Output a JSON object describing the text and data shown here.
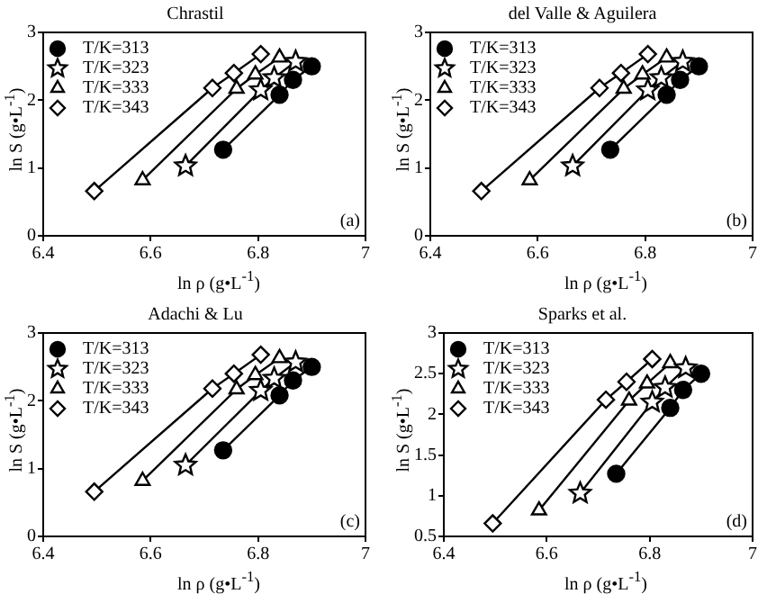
{
  "chart_data": [
    {
      "type": "line",
      "title": "Chrastil",
      "xlabel": "ln ρ (g•L$^{-1}$)",
      "ylabel": "ln S (g•L$^{-1}$)",
      "xlim": [
        6.4,
        7
      ],
      "xticks": [
        6.4,
        6.6,
        6.8,
        7
      ],
      "ylim": [
        0,
        3
      ],
      "yticks": [
        0,
        1,
        2,
        3
      ],
      "legend": "top left",
      "grid": false,
      "annotations": [
        "(a)"
      ],
      "series": [
        {
          "name": "T/K=313",
          "color": "#000000",
          "marker": "circle",
          "x": [
            6.735,
            6.84,
            6.865,
            6.9
          ],
          "values": [
            1.27,
            2.08,
            2.3,
            2.5
          ]
        },
        {
          "name": "T/K=323",
          "color": "#000000",
          "marker": "star",
          "x": [
            6.665,
            6.805,
            6.83,
            6.87
          ],
          "values": [
            1.03,
            2.15,
            2.33,
            2.57
          ]
        },
        {
          "name": "T/K=333",
          "color": "#000000",
          "marker": "triangle",
          "x": [
            6.585,
            6.76,
            6.795,
            6.84
          ],
          "values": [
            0.82,
            2.17,
            2.38,
            2.63
          ]
        },
        {
          "name": "T/K=343",
          "color": "#000000",
          "marker": "diamond",
          "x": [
            6.495,
            6.715,
            6.755,
            6.805
          ],
          "values": [
            0.66,
            2.18,
            2.4,
            2.68
          ]
        }
      ]
    },
    {
      "type": "line",
      "title": "del Valle & Aguilera",
      "xlabel": "ln ρ (g•L$^{-1}$)",
      "ylabel": "ln S (g•L$^{-1}$)",
      "xlim": [
        6.4,
        7
      ],
      "xticks": [
        6.4,
        6.6,
        6.8,
        7
      ],
      "ylim": [
        0,
        3
      ],
      "yticks": [
        0,
        1,
        2,
        3
      ],
      "legend": "top left",
      "grid": false,
      "annotations": [
        "(b)"
      ],
      "series": [
        {
          "name": "T/K=313",
          "color": "#000000",
          "marker": "circle",
          "x": [
            6.735,
            6.84,
            6.865,
            6.9
          ],
          "values": [
            1.27,
            2.08,
            2.3,
            2.5
          ]
        },
        {
          "name": "T/K=323",
          "color": "#000000",
          "marker": "star",
          "x": [
            6.665,
            6.805,
            6.83,
            6.87
          ],
          "values": [
            1.03,
            2.15,
            2.33,
            2.57
          ]
        },
        {
          "name": "T/K=333",
          "color": "#000000",
          "marker": "triangle",
          "x": [
            6.585,
            6.76,
            6.795,
            6.84
          ],
          "values": [
            0.82,
            2.17,
            2.38,
            2.63
          ]
        },
        {
          "name": "T/K=343",
          "color": "#000000",
          "marker": "diamond",
          "x": [
            6.495,
            6.715,
            6.755,
            6.805
          ],
          "values": [
            0.66,
            2.18,
            2.4,
            2.68
          ]
        }
      ]
    },
    {
      "type": "line",
      "title": "Adachi & Lu",
      "xlabel": "ln ρ (g•L$^{-1}$)",
      "ylabel": "ln S (g•L$^{-1}$)",
      "xlim": [
        6.4,
        7
      ],
      "xticks": [
        6.4,
        6.6,
        6.8,
        7
      ],
      "ylim": [
        0,
        3
      ],
      "yticks": [
        0,
        1,
        2,
        3
      ],
      "legend": "top left",
      "grid": false,
      "annotations": [
        "(c)"
      ],
      "series": [
        {
          "name": "T/K=313",
          "color": "#000000",
          "marker": "circle",
          "x": [
            6.735,
            6.84,
            6.865,
            6.9
          ],
          "values": [
            1.27,
            2.08,
            2.3,
            2.5
          ]
        },
        {
          "name": "T/K=323",
          "color": "#000000",
          "marker": "star",
          "x": [
            6.665,
            6.805,
            6.83,
            6.87
          ],
          "values": [
            1.05,
            2.15,
            2.33,
            2.57
          ]
        },
        {
          "name": "T/K=333",
          "color": "#000000",
          "marker": "triangle",
          "x": [
            6.585,
            6.76,
            6.795,
            6.84
          ],
          "values": [
            0.82,
            2.17,
            2.38,
            2.63
          ]
        },
        {
          "name": "T/K=343",
          "color": "#000000",
          "marker": "diamond",
          "x": [
            6.495,
            6.715,
            6.755,
            6.805
          ],
          "values": [
            0.66,
            2.18,
            2.4,
            2.68
          ]
        }
      ]
    },
    {
      "type": "line",
      "title": "Sparks et al.",
      "xlabel": "ln ρ (g•L$^{-1}$)",
      "ylabel": "ln S (g•L$^{-1}$)",
      "xlim": [
        6.4,
        7
      ],
      "xticks": [
        6.4,
        6.6,
        6.8,
        7
      ],
      "ylim": [
        0.5,
        3
      ],
      "yticks": [
        0.5,
        1,
        1.5,
        2,
        2.5,
        3
      ],
      "legend": "top left",
      "grid": false,
      "annotations": [
        "(d)"
      ],
      "series": [
        {
          "name": "T/K=313",
          "color": "#000000",
          "marker": "circle",
          "x": [
            6.735,
            6.84,
            6.865,
            6.9
          ],
          "values": [
            1.27,
            2.08,
            2.3,
            2.5
          ]
        },
        {
          "name": "T/K=323",
          "color": "#000000",
          "marker": "star",
          "x": [
            6.665,
            6.805,
            6.83,
            6.87
          ],
          "values": [
            1.03,
            2.15,
            2.33,
            2.57
          ]
        },
        {
          "name": "T/K=333",
          "color": "#000000",
          "marker": "triangle",
          "x": [
            6.585,
            6.76,
            6.795,
            6.84
          ],
          "values": [
            0.82,
            2.17,
            2.38,
            2.63
          ]
        },
        {
          "name": "T/K=343",
          "color": "#000000",
          "marker": "diamond",
          "x": [
            6.495,
            6.715,
            6.755,
            6.805
          ],
          "values": [
            0.66,
            2.18,
            2.4,
            2.68
          ]
        }
      ]
    }
  ]
}
